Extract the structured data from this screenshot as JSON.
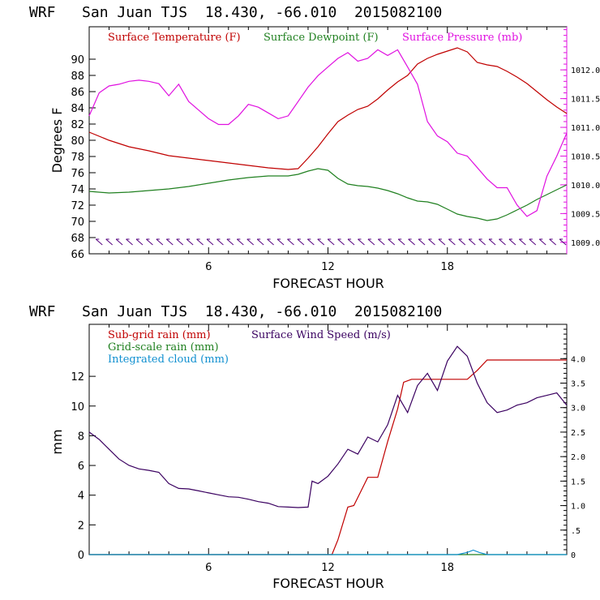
{
  "chart_data": [
    {
      "type": "line",
      "title": "WRF   San Juan TJS  18.430, -66.010  2015082100",
      "xlabel": "FORECAST HOUR",
      "ylabel": "Degrees F",
      "xlim": [
        0,
        24
      ],
      "ylim": [
        66,
        94
      ],
      "x_ticks": [
        "6",
        "12",
        "18"
      ],
      "y_ticks": [
        "66",
        "68",
        "70",
        "72",
        "74",
        "76",
        "78",
        "80",
        "82",
        "84",
        "86",
        "88",
        "90"
      ],
      "right_axis": {
        "label": "",
        "lim": [
          1008.8,
          1012.75
        ],
        "ticks": [
          "1009.0",
          "1009.5",
          "1010.0",
          "1010.5",
          "1011.0",
          "1011.5",
          "1012.0"
        ],
        "color": "#e010e0"
      },
      "wind_barbs": {
        "y": 67.5,
        "x_start": 0.5,
        "x_end": 23.8,
        "count": 47,
        "color": "#55007f"
      },
      "series": [
        {
          "name": "Surface Temperature (F)",
          "color": "#c00000",
          "axis": "left",
          "x": [
            0,
            1,
            2,
            3,
            4,
            5,
            6,
            7,
            8,
            9,
            10,
            10.5,
            11,
            11.5,
            12,
            12.5,
            13,
            13.5,
            14,
            14.5,
            15,
            15.5,
            16,
            16.5,
            17,
            17.5,
            18,
            18.5,
            19,
            19.5,
            20,
            20.5,
            21,
            21.5,
            22,
            22.5,
            23,
            23.5,
            24
          ],
          "values": [
            81,
            80,
            79.2,
            78.7,
            78.1,
            77.8,
            77.5,
            77.2,
            76.9,
            76.6,
            76.4,
            76.5,
            77.8,
            79.2,
            80.8,
            82.3,
            83.1,
            83.8,
            84.2,
            85.1,
            86.2,
            87.2,
            88.0,
            89.4,
            90.1,
            90.6,
            91.0,
            91.4,
            90.9,
            89.6,
            89.3,
            89.1,
            88.5,
            87.8,
            87.0,
            86.0,
            85.0,
            84.1,
            83.3
          ]
        },
        {
          "name": "Surface Dewpoint (F)",
          "color": "#208020",
          "axis": "left",
          "x": [
            0,
            1,
            2,
            3,
            4,
            5,
            6,
            7,
            8,
            9,
            10,
            10.5,
            11,
            11.5,
            12,
            12.5,
            13,
            13.5,
            14,
            14.5,
            15,
            15.5,
            16,
            16.5,
            17,
            17.5,
            18,
            18.5,
            19,
            19.5,
            20,
            20.5,
            21,
            21.5,
            22,
            22.5,
            23,
            23.5,
            24
          ],
          "values": [
            73.7,
            73.5,
            73.6,
            73.8,
            74.0,
            74.3,
            74.7,
            75.1,
            75.4,
            75.6,
            75.6,
            75.8,
            76.2,
            76.5,
            76.3,
            75.3,
            74.6,
            74.4,
            74.3,
            74.1,
            73.8,
            73.4,
            72.9,
            72.5,
            72.4,
            72.1,
            71.5,
            70.9,
            70.6,
            70.4,
            70.1,
            70.3,
            70.8,
            71.4,
            72.0,
            72.7,
            73.3,
            73.9,
            74.5
          ]
        },
        {
          "name": "Surface Pressure (mb)",
          "color": "#e010e0",
          "axis": "right",
          "x": [
            0,
            0.5,
            1,
            1.5,
            2,
            2.5,
            3,
            3.5,
            4,
            4.5,
            5,
            5.5,
            6,
            6.5,
            7,
            7.5,
            8,
            8.5,
            9,
            9.5,
            10,
            10.5,
            11,
            11.5,
            12,
            12.5,
            13,
            13.5,
            14,
            14.5,
            15,
            15.5,
            16,
            16.5,
            17,
            17.5,
            18,
            18.5,
            19,
            19.5,
            20,
            20.5,
            21,
            21.5,
            22,
            22.5,
            23,
            23.5,
            24
          ],
          "values": [
            1011.2,
            1011.6,
            1011.72,
            1011.75,
            1011.8,
            1011.82,
            1011.8,
            1011.76,
            1011.55,
            1011.75,
            1011.45,
            1011.3,
            1011.15,
            1011.05,
            1011.05,
            1011.2,
            1011.4,
            1011.35,
            1011.25,
            1011.15,
            1011.2,
            1011.45,
            1011.7,
            1011.9,
            1012.05,
            1012.2,
            1012.3,
            1012.15,
            1012.2,
            1012.35,
            1012.25,
            1012.35,
            1012.05,
            1011.75,
            1011.1,
            1010.85,
            1010.75,
            1010.55,
            1010.5,
            1010.3,
            1010.1,
            1009.95,
            1009.95,
            1009.65,
            1009.45,
            1009.55,
            1010.15,
            1010.5,
            1010.9
          ]
        }
      ],
      "legend_placement": "top",
      "grid": false
    },
    {
      "type": "line",
      "title": "WRF   San Juan TJS  18.430, -66.010  2015082100",
      "xlabel": "FORECAST HOUR",
      "ylabel": "mm",
      "xlim": [
        0,
        24
      ],
      "ylim": [
        0,
        15.5
      ],
      "x_ticks": [
        "6",
        "12",
        "18"
      ],
      "y_ticks": [
        "0",
        "2",
        "4",
        "6",
        "8",
        "10",
        "12"
      ],
      "right_axis": {
        "label": "",
        "lim": [
          0,
          4.7
        ],
        "ticks": [
          "0",
          ".5",
          "1.0",
          "1.5",
          "2.0",
          "2.5",
          "3.0",
          "3.5",
          "4.0"
        ],
        "color": "#000000"
      },
      "series": [
        {
          "name": "Sub-grid rain (mm)",
          "color": "#c00000",
          "axis": "left",
          "x": [
            0,
            11,
            12.2,
            12.5,
            13,
            13.3,
            14,
            14.5,
            15,
            15.5,
            15.8,
            16.2,
            17,
            18,
            18.5,
            19,
            19.5,
            20,
            20.5,
            21,
            22,
            23,
            24
          ],
          "values": [
            0,
            0,
            0,
            1,
            3.2,
            3.3,
            5.2,
            5.2,
            7.6,
            9.8,
            11.6,
            11.8,
            11.8,
            11.8,
            11.8,
            11.8,
            12.4,
            13.1,
            13.1,
            13.1,
            13.1,
            13.1,
            13.1
          ]
        },
        {
          "name": "Grid-scale rain (mm)",
          "color": "#208020",
          "axis": "left",
          "x": [
            0,
            24
          ],
          "values": [
            0,
            0
          ]
        },
        {
          "name": "Integrated cloud (mm)",
          "color": "#1090d0",
          "axis": "left",
          "x": [
            0,
            18,
            18.5,
            19,
            19.3,
            19.6,
            20,
            24
          ],
          "values": [
            0,
            0,
            0,
            0.15,
            0.3,
            0.15,
            0,
            0
          ]
        },
        {
          "name": "Surface Wind Speed (m/s)",
          "color": "#3a0060",
          "axis": "right",
          "x": [
            0,
            0.5,
            1,
            1.5,
            2,
            2.5,
            3,
            3.5,
            4,
            4.5,
            5,
            5.5,
            6,
            6.5,
            7,
            7.5,
            8,
            8.5,
            9,
            9.5,
            10,
            10.5,
            11,
            11.2,
            11.5,
            12,
            12.5,
            13,
            13.5,
            14,
            14.5,
            15,
            15.5,
            16,
            16.5,
            17,
            17.5,
            18,
            18.5,
            19,
            19.5,
            20,
            20.5,
            21,
            21.5,
            22,
            22.5,
            23,
            23.5,
            24
          ],
          "values": [
            2.5,
            2.35,
            2.15,
            1.95,
            1.82,
            1.75,
            1.72,
            1.68,
            1.45,
            1.35,
            1.34,
            1.3,
            1.26,
            1.22,
            1.18,
            1.17,
            1.13,
            1.08,
            1.05,
            0.98,
            0.97,
            0.96,
            0.97,
            1.5,
            1.45,
            1.6,
            1.85,
            2.15,
            2.05,
            2.4,
            2.3,
            2.65,
            3.25,
            2.9,
            3.45,
            3.7,
            3.35,
            3.95,
            4.25,
            4.05,
            3.5,
            3.1,
            2.9,
            2.95,
            3.05,
            3.1,
            3.2,
            3.25,
            3.3,
            3.05
          ]
        }
      ],
      "legend_placement": "top-left",
      "grid": false
    }
  ]
}
